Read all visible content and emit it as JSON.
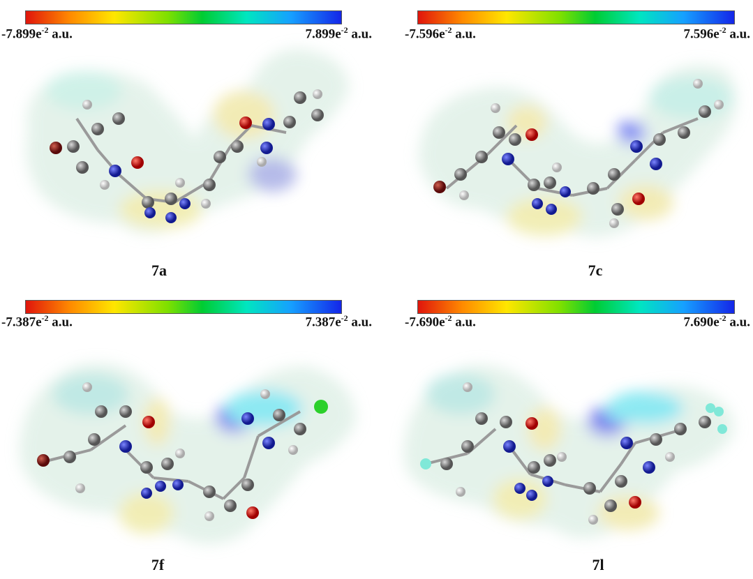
{
  "panels": [
    {
      "compound": "7a",
      "min_mantissa": "-7.899e",
      "max_mantissa": "7.899e",
      "exponent": "-2",
      "unit": " a.u."
    },
    {
      "compound": "7c",
      "min_mantissa": "-7.596e",
      "max_mantissa": "7.596e",
      "exponent": "-2",
      "unit": " a.u."
    },
    {
      "compound": "7f",
      "min_mantissa": "-7.387e",
      "max_mantissa": "7.387e",
      "exponent": "-2",
      "unit": " a.u."
    },
    {
      "compound": "7l",
      "min_mantissa": "-7.690e",
      "max_mantissa": "7.690e",
      "exponent": "-2",
      "unit": " a.u."
    }
  ],
  "colors": {
    "negative": "#e0150c",
    "neutral": "#00cc33",
    "positive": "#1426e8",
    "carbon": "#7f7f7f",
    "hydrogen": "#e6e6e6",
    "nitrogen": "#2430c8",
    "oxygen": "#e01010",
    "bromine": "#8b1a1a",
    "chlorine": "#22cc22",
    "fluorine": "#80e8d8"
  }
}
